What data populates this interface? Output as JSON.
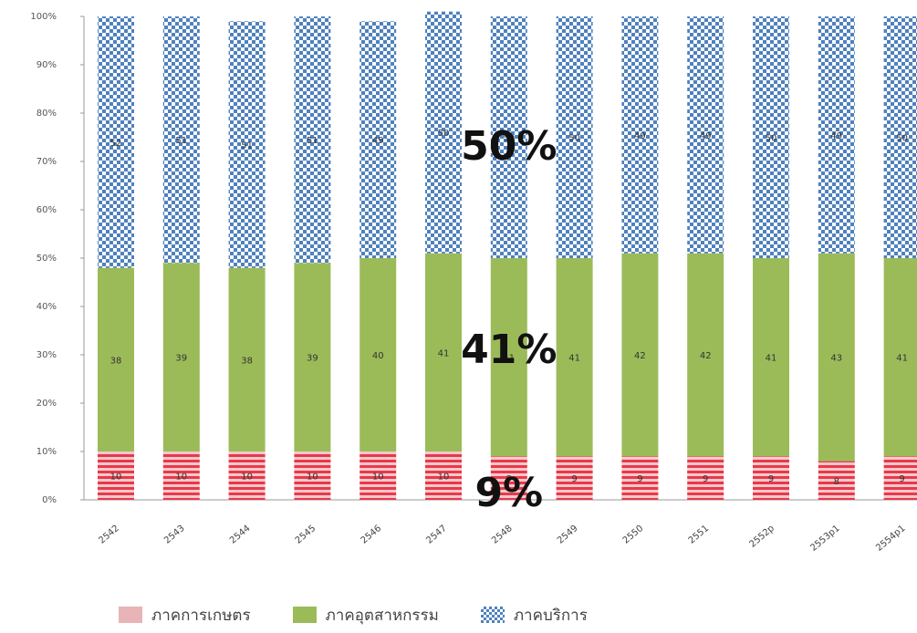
{
  "chart_data": {
    "type": "bar",
    "stacked": true,
    "categories": [
      "2542",
      "2543",
      "2544",
      "2545",
      "2546",
      "2547",
      "2548",
      "2549",
      "2550",
      "2551",
      "2552p",
      "2553p1",
      "2554p1"
    ],
    "series": [
      {
        "name": "ภาคการเกษตร",
        "values": [
          10,
          10,
          10,
          10,
          10,
          10,
          9,
          9,
          9,
          9,
          9,
          8,
          9
        ],
        "color": "#e8b4b8",
        "pattern": "red-stripes"
      },
      {
        "name": "ภาคอุตสาหกรรม",
        "values": [
          38,
          39,
          38,
          39,
          40,
          41,
          41,
          41,
          42,
          42,
          41,
          43,
          41
        ],
        "color": "#9bbb59",
        "pattern": "solid"
      },
      {
        "name": "ภาคบริการ",
        "values": [
          52,
          51,
          51,
          51,
          49,
          50,
          50,
          50,
          49,
          49,
          50,
          49,
          50
        ],
        "color": "#4f81bd",
        "pattern": "checker"
      }
    ],
    "data_labels": {
      "ภาคการเกษตร": [
        "10",
        "10",
        "10",
        "10",
        "10",
        "10",
        "9",
        "9",
        "9",
        "9",
        "9",
        "8",
        "9"
      ],
      "ภาคอุตสาหกรรม": [
        "38",
        "39",
        "38",
        "39",
        "40",
        "41",
        "41",
        "41",
        "42",
        "42",
        "41",
        "43",
        "41"
      ],
      "ภาคบริการ": [
        "52",
        "51",
        "51",
        "51",
        "49",
        "50",
        "50",
        "50",
        "49",
        "49",
        "50",
        "49",
        "50"
      ]
    },
    "ylim": [
      0,
      100
    ],
    "y_ticks": [
      "0%",
      "10%",
      "20%",
      "30%",
      "40%",
      "50%",
      "60%",
      "70%",
      "80%",
      "90%",
      "100%"
    ],
    "overlay_annotations": [
      "50%",
      "41%",
      "9%"
    ],
    "legend_position": "bottom",
    "grid": false
  }
}
